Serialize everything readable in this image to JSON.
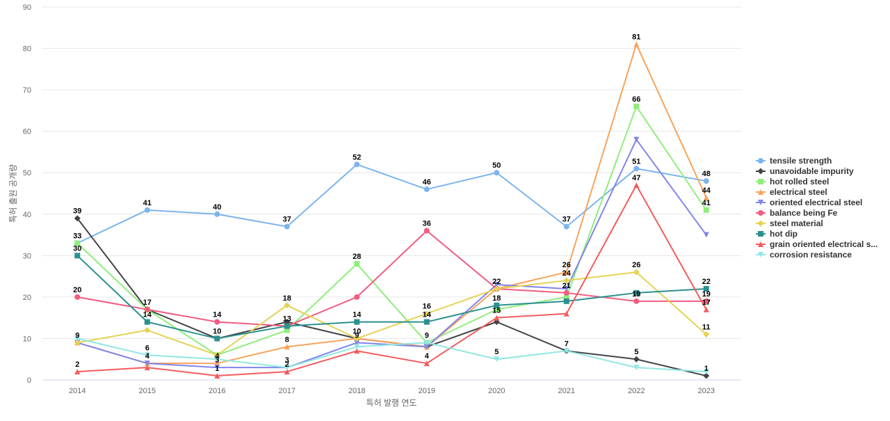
{
  "chart_data": {
    "type": "line",
    "title": "",
    "xlabel": "특허 발행 연도",
    "ylabel": "특허 출원 공개량",
    "categories": [
      "2014",
      "2015",
      "2016",
      "2017",
      "2018",
      "2019",
      "2020",
      "2021",
      "2022",
      "2023"
    ],
    "ylim": [
      0,
      90
    ],
    "yticks": [
      0,
      10,
      20,
      30,
      40,
      50,
      60,
      70,
      80,
      90
    ],
    "grid": true,
    "legend_position": "right",
    "series": [
      {
        "name": "tensile strength",
        "color": "#7cb5ec",
        "marker": "circle",
        "values": [
          33,
          41,
          40,
          37,
          52,
          46,
          50,
          37,
          51,
          48
        ]
      },
      {
        "name": "unavoidable impurity",
        "color": "#434348",
        "marker": "diamond",
        "values": [
          39,
          17,
          10,
          14,
          10,
          8,
          14,
          7,
          5,
          1
        ]
      },
      {
        "name": "hot rolled steel",
        "color": "#90ed7d",
        "marker": "square",
        "values": [
          33,
          17,
          6,
          12,
          28,
          9,
          17,
          20,
          66,
          41
        ]
      },
      {
        "name": "electrical steel",
        "color": "#f7a35c",
        "marker": "triangle",
        "values": [
          9,
          4,
          4,
          8,
          10,
          8,
          22,
          26,
          81,
          44
        ]
      },
      {
        "name": "oriented electrical steel",
        "color": "#8085e9",
        "marker": "triangle-down",
        "values": [
          9,
          4,
          3,
          3,
          9,
          8,
          23,
          22,
          58,
          35
        ]
      },
      {
        "name": "balance being Fe",
        "color": "#f15c80",
        "marker": "circle",
        "values": [
          20,
          17,
          14,
          13,
          20,
          36,
          22,
          21,
          19,
          19
        ]
      },
      {
        "name": "steel material",
        "color": "#e4d354",
        "marker": "diamond",
        "values": [
          9,
          12,
          6,
          18,
          10,
          16,
          22,
          24,
          26,
          11
        ]
      },
      {
        "name": "hot dip",
        "color": "#2b908f",
        "marker": "square",
        "values": [
          30,
          14,
          10,
          13,
          14,
          14,
          18,
          19,
          21,
          22
        ]
      },
      {
        "name": "grain oriented electrical s...",
        "color": "#f45b5b",
        "marker": "triangle",
        "values": [
          2,
          3,
          1,
          2,
          7,
          4,
          15,
          16,
          47,
          17
        ]
      },
      {
        "name": "corrosion resistance",
        "color": "#91e8e1",
        "marker": "triangle-down",
        "values": [
          10,
          6,
          5,
          3,
          8,
          9,
          5,
          7,
          3,
          2
        ]
      }
    ],
    "data_labels": [
      {
        "series": 0,
        "indices": [
          0,
          1,
          2,
          3,
          4,
          5,
          6,
          7,
          8,
          9
        ]
      },
      {
        "series": 1,
        "indices": [
          0,
          2,
          8,
          9
        ]
      },
      {
        "series": 2,
        "indices": [
          4,
          8,
          9
        ]
      },
      {
        "series": 3,
        "indices": [
          2,
          3,
          6,
          7,
          8,
          9
        ]
      },
      {
        "series": 4,
        "indices": [
          1,
          2,
          3,
          4
        ]
      },
      {
        "series": 5,
        "indices": [
          0,
          1,
          2,
          5,
          7,
          8,
          9
        ]
      },
      {
        "series": 6,
        "indices": [
          0,
          3,
          4,
          5,
          7,
          8,
          9
        ]
      },
      {
        "series": 7,
        "indices": [
          0,
          1,
          3,
          4,
          5,
          6,
          9
        ]
      },
      {
        "series": 8,
        "indices": [
          0,
          2,
          3,
          5,
          6,
          8,
          9
        ]
      },
      {
        "series": 9,
        "indices": [
          1,
          5,
          6,
          7
        ]
      }
    ]
  }
}
